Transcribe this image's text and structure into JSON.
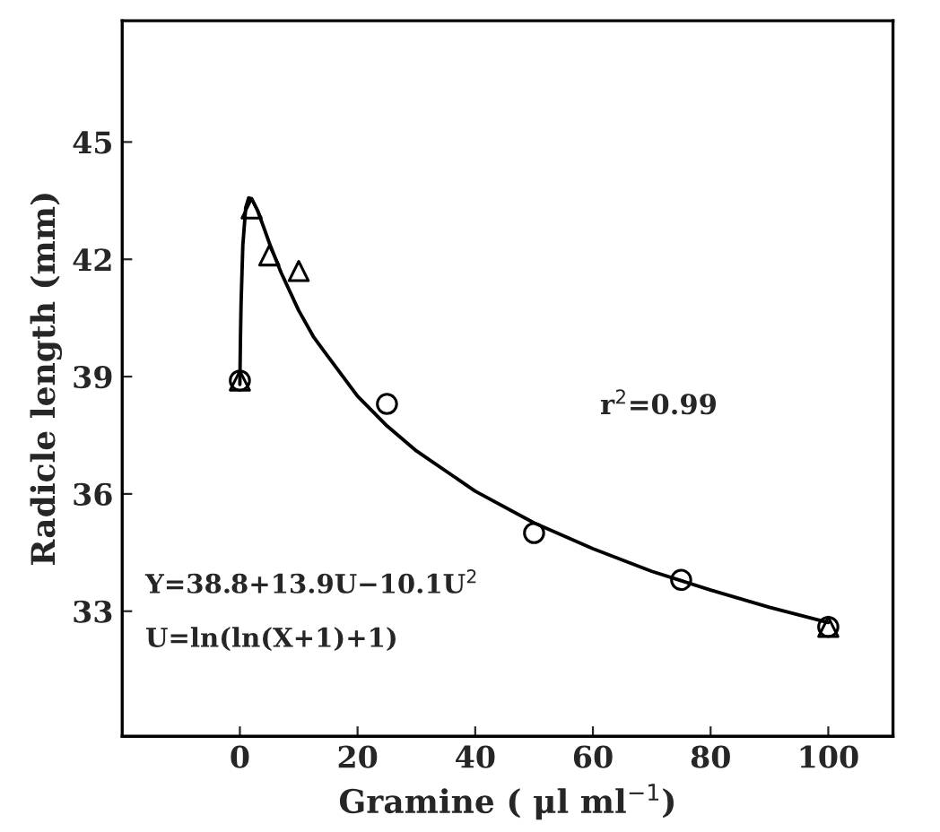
{
  "chart_data": {
    "type": "scatter",
    "xlabel": "Gramine ( μl ml$^{−1}$)",
    "ylabel": "Radicle length (mm)",
    "xlim": [
      -20,
      111
    ],
    "ylim": [
      29.8,
      48.1
    ],
    "xticks": [
      0,
      20,
      40,
      60,
      80,
      100
    ],
    "yticks": [
      33,
      36,
      39,
      42,
      45
    ],
    "grid": false,
    "legend": false,
    "series": [
      {
        "marker": "triangle",
        "color": "#000000",
        "x": [
          0,
          2,
          5,
          10,
          100
        ],
        "values": [
          38.9,
          43.3,
          42.1,
          41.7,
          32.6
        ]
      },
      {
        "marker": "circle",
        "color": "#000000",
        "x": [
          0,
          25,
          50,
          75,
          100
        ],
        "values": [
          38.9,
          38.3,
          35.0,
          33.8,
          32.6
        ]
      },
      {
        "type": "line",
        "marker": "none",
        "line_style": "solid",
        "color": "#000000",
        "x": [
          0,
          0.05,
          0.1,
          0.2,
          0.5,
          1,
          1.5,
          2,
          3,
          4,
          5,
          7,
          10,
          12.5,
          15,
          20,
          25,
          30,
          40,
          50,
          60,
          70,
          80,
          90,
          100
        ],
        "values": [
          38.8,
          39.44,
          39.98,
          40.85,
          42.36,
          43.33,
          43.57,
          43.55,
          43.25,
          42.84,
          42.42,
          41.66,
          40.69,
          40.02,
          39.51,
          38.5,
          37.74,
          37.1,
          36.07,
          35.26,
          34.6,
          34.02,
          33.54,
          33.1,
          32.71
        ]
      }
    ],
    "annotations": [
      "r$^{2}$=0.99",
      "Y=38.8+13.9U−10.1U$^{2}$",
      "U=ln(ln(X+1)+1)"
    ]
  }
}
